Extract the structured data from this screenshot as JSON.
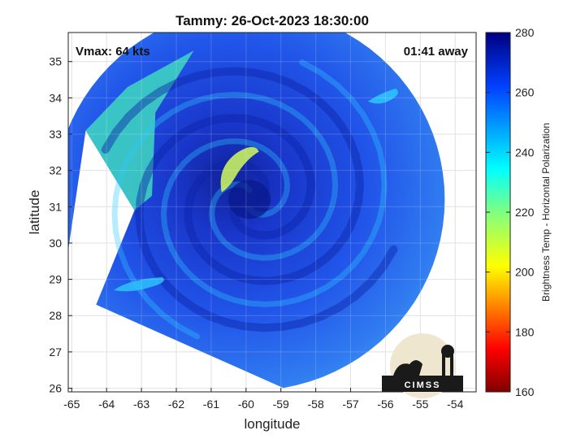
{
  "chart_data": {
    "type": "heatmap",
    "title": "Tammy: 26-Oct-2023 18:30:00",
    "xlabel": "longitude",
    "ylabel": "latitude",
    "xlim": [
      -65.1,
      -53.4
    ],
    "ylim": [
      25.9,
      35.8
    ],
    "xticks": [
      "-65",
      "-64",
      "-63",
      "-62",
      "-61",
      "-60",
      "-59",
      "-58",
      "-57",
      "-56",
      "-55",
      "-54"
    ],
    "yticks": [
      "26",
      "27",
      "28",
      "29",
      "30",
      "31",
      "32",
      "33",
      "34",
      "35"
    ],
    "xtick_values": [
      -65,
      -64,
      -63,
      -62,
      -61,
      -60,
      -59,
      -58,
      -57,
      -56,
      -55,
      -54
    ],
    "ytick_values": [
      26,
      27,
      28,
      29,
      30,
      31,
      32,
      33,
      34,
      35
    ],
    "grid": true,
    "annotations": {
      "vmax": "Vmax: 64 kts",
      "time_away": "01:41 away"
    },
    "colorbar": {
      "label": "Brightness Temp - Horizontal Polarization",
      "range": [
        160,
        280
      ],
      "ticks": [
        "280",
        "260",
        "240",
        "220",
        "200",
        "180",
        "160"
      ],
      "tick_values": [
        280,
        260,
        240,
        220,
        200,
        180,
        160
      ],
      "colormap": "jet"
    },
    "storm_center": [
      -59.9,
      31.2
    ],
    "swath_radius_deg": 5.6
  },
  "logo": {
    "text": "CIMSS"
  },
  "colors": {
    "background_field": "#1a4fe0",
    "eye_dark": "#0a1a8c",
    "warm_band": "#2ec8ff",
    "hot_spot": "#c8f060",
    "cold_corner": "#40d8c0"
  }
}
